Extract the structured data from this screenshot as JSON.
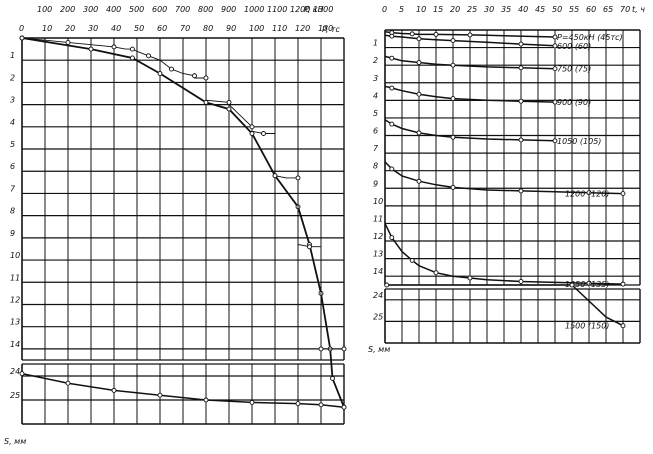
{
  "chart_data": [
    {
      "type": "line",
      "title": "",
      "x_top_label": "P, кН",
      "x_top_ticks": [
        "100",
        "200",
        "300",
        "400",
        "500",
        "600",
        "700",
        "800",
        "900",
        "1000",
        "1100",
        "1200",
        "1300"
      ],
      "x_label": "P, тс",
      "x_ticks": [
        "0",
        "10",
        "20",
        "30",
        "40",
        "50",
        "60",
        "70",
        "80",
        "90",
        "100",
        "110",
        "120",
        "130"
      ],
      "xlim": [
        0,
        140
      ],
      "y_label": "S, мм",
      "y_ticks_upper": [
        "1",
        "2",
        "3",
        "4",
        "5",
        "6",
        "7",
        "8",
        "9",
        "10",
        "11",
        "12",
        "13",
        "14"
      ],
      "y_ticks_lower": [
        "24",
        "25"
      ],
      "ylim_upper": [
        0,
        14.5
      ],
      "ylim_lower": [
        23.5,
        26
      ],
      "series": [
        {
          "kind": "loading",
          "x": [
            0,
            30,
            48,
            60,
            80,
            90,
            100,
            110,
            120,
            125,
            130,
            134,
            135,
            140
          ],
          "y": [
            0,
            0.5,
            0.9,
            1.6,
            2.9,
            3.2,
            4.3,
            6.2,
            7.6,
            9.3,
            11.5,
            14.0,
            24.1,
            25.3
          ]
        },
        {
          "kind": "steps",
          "x": [
            0,
            10,
            20,
            30,
            40,
            45,
            48,
            50,
            55,
            60,
            65,
            70,
            75,
            75,
            80,
            80,
            90,
            90,
            100,
            100,
            105,
            110,
            110,
            115,
            120,
            120,
            125,
            130,
            130,
            135,
            140
          ],
          "y": [
            0,
            0.1,
            0.2,
            0.3,
            0.4,
            0.5,
            0.5,
            0.6,
            0.8,
            1.0,
            1.4,
            1.6,
            1.7,
            1.8,
            1.8,
            2.8,
            2.9,
            3.0,
            4.0,
            4.2,
            4.3,
            4.3,
            6.2,
            6.3,
            6.3,
            9.3,
            9.4,
            9.4,
            14.0,
            14.0,
            14.0
          ]
        },
        {
          "kind": "unloading",
          "x": [
            0,
            20,
            40,
            60,
            80,
            100,
            120,
            130,
            140
          ],
          "y": [
            23.9,
            24.3,
            24.6,
            24.8,
            25.0,
            25.1,
            25.15,
            25.2,
            25.3
          ]
        }
      ]
    },
    {
      "type": "line",
      "title": "",
      "x_label": "t, ч",
      "x_ticks": [
        "0",
        "5",
        "10",
        "15",
        "20",
        "25",
        "30",
        "35",
        "40",
        "45",
        "50",
        "55",
        "60",
        "65",
        "70"
      ],
      "xlim": [
        0,
        75
      ],
      "y_label": "S, мм",
      "y_ticks_upper": [
        "1",
        "2",
        "3",
        "4",
        "5",
        "6",
        "7",
        "8",
        "9",
        "10",
        "11",
        "12",
        "13",
        "14"
      ],
      "y_ticks_lower": [
        "24",
        "25"
      ],
      "ylim_upper": [
        0,
        14.5
      ],
      "ylim_lower": [
        23.5,
        26
      ],
      "series": [
        {
          "name": "P=450кН (45тс)",
          "x": [
            0,
            2,
            5,
            8,
            10,
            15,
            20,
            25,
            30,
            50
          ],
          "y": [
            0.1,
            0.15,
            0.2,
            0.22,
            0.25,
            0.25,
            0.26,
            0.28,
            0.3,
            0.4
          ]
        },
        {
          "name": "600 (60)",
          "x": [
            0,
            2,
            5,
            10,
            15,
            20,
            30,
            40,
            50
          ],
          "y": [
            0.3,
            0.35,
            0.4,
            0.5,
            0.55,
            0.6,
            0.7,
            0.8,
            0.9
          ]
        },
        {
          "name": "750 (75)",
          "x": [
            0,
            2,
            5,
            10,
            15,
            20,
            30,
            40,
            50
          ],
          "y": [
            1.5,
            1.6,
            1.75,
            1.85,
            1.95,
            2.0,
            2.1,
            2.15,
            2.2
          ]
        },
        {
          "name": "900 (90)",
          "x": [
            0,
            2,
            5,
            10,
            15,
            20,
            30,
            40,
            50
          ],
          "y": [
            3.2,
            3.3,
            3.45,
            3.65,
            3.8,
            3.9,
            4.0,
            4.05,
            4.1
          ]
        },
        {
          "name": "1050 (105)",
          "x": [
            0,
            2,
            5,
            10,
            15,
            20,
            30,
            40,
            50
          ],
          "y": [
            5.1,
            5.35,
            5.6,
            5.85,
            6.0,
            6.1,
            6.2,
            6.25,
            6.3
          ]
        },
        {
          "name": "1200 (120)",
          "x": [
            0,
            2,
            5,
            10,
            15,
            20,
            30,
            40,
            50,
            60,
            70
          ],
          "y": [
            7.5,
            7.9,
            8.3,
            8.6,
            8.8,
            8.95,
            9.1,
            9.15,
            9.2,
            9.25,
            9.3
          ]
        },
        {
          "name": "1350 (135)",
          "x": [
            0,
            2,
            5,
            8,
            10,
            15,
            20,
            25,
            30,
            40,
            50,
            60,
            70
          ],
          "y": [
            11.0,
            11.8,
            12.6,
            13.1,
            13.4,
            13.8,
            14.0,
            14.1,
            14.2,
            14.3,
            14.35,
            14.4,
            14.45
          ]
        },
        {
          "name": "1500 (150)",
          "x": [
            0,
            0.5,
            50,
            55,
            65,
            70
          ],
          "y": [
            14.5,
            14.7,
            14.8,
            14.9,
            24.8,
            25.2
          ]
        }
      ]
    }
  ]
}
